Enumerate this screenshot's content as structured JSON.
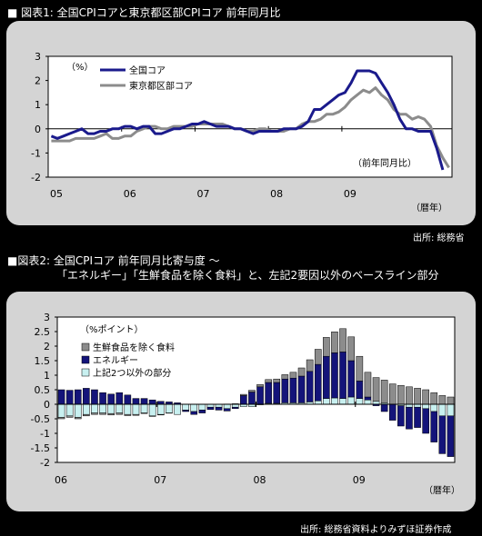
{
  "figures": [
    {
      "title": "■ 図表1: 全国CPIコアと東京都区部CPIコア 前年同月比",
      "source": "出所: 総務省"
    },
    {
      "title_line1": "■図表2: 全国CPIコア 前年同月比寄与度 〜",
      "title_line2": "「エネルギー」「生鮮食品を除く食料」と、左記2要因以外のベースライン部分",
      "source": "出所: 総務省資料よりみずほ証券作成"
    }
  ],
  "chart_data": [
    {
      "type": "line",
      "unit_label": "（%）",
      "annotation": "（前年同月比）",
      "xlabel": "（暦年）",
      "x_start": "2005-01",
      "x_ticks": [
        "05",
        "06",
        "07",
        "08",
        "09"
      ],
      "ylim": [
        -2,
        3
      ],
      "y_ticks": [
        "3",
        "2",
        "1",
        "0",
        "-1",
        "-2"
      ],
      "series": [
        {
          "name": "全国コア",
          "color": "#1a1a8c",
          "values": [
            -0.3,
            -0.4,
            -0.3,
            -0.2,
            -0.1,
            0.0,
            -0.2,
            -0.2,
            -0.1,
            -0.1,
            0.0,
            0.0,
            0.1,
            0.1,
            0.0,
            0.1,
            0.1,
            -0.2,
            -0.2,
            -0.1,
            0.0,
            0.0,
            0.1,
            0.2,
            0.2,
            0.3,
            0.2,
            0.1,
            0.1,
            0.1,
            0.0,
            0.0,
            -0.1,
            -0.2,
            -0.1,
            -0.1,
            -0.1,
            -0.1,
            0.0,
            0.0,
            0.0,
            0.1,
            0.3,
            0.8,
            0.8,
            1.0,
            1.2,
            1.4,
            1.5,
            1.9,
            2.4,
            2.4,
            2.4,
            2.3,
            1.9,
            1.5,
            1.0,
            0.4,
            0.0,
            0.0,
            -0.1,
            -0.1,
            -0.1,
            -0.8,
            -1.7
          ]
        },
        {
          "name": "東京都区部コア",
          "color": "#8c8c8c",
          "values": [
            -0.5,
            -0.5,
            -0.5,
            -0.5,
            -0.4,
            -0.4,
            -0.4,
            -0.4,
            -0.3,
            -0.2,
            -0.4,
            -0.4,
            -0.3,
            -0.3,
            -0.1,
            0.0,
            0.1,
            0.1,
            0.0,
            0.0,
            0.1,
            0.1,
            0.1,
            0.1,
            0.2,
            0.2,
            0.2,
            0.2,
            0.2,
            0.1,
            0.0,
            0.0,
            -0.1,
            -0.1,
            0.0,
            0.0,
            -0.1,
            -0.1,
            -0.1,
            0.0,
            0.0,
            0.2,
            0.3,
            0.3,
            0.4,
            0.6,
            0.6,
            0.7,
            0.9,
            1.2,
            1.4,
            1.6,
            1.5,
            1.7,
            1.4,
            1.2,
            0.8,
            0.6,
            0.6,
            0.4,
            0.5,
            0.4,
            0.1,
            -0.7,
            -1.2,
            -1.6
          ]
        }
      ]
    },
    {
      "type": "bar",
      "stacked": true,
      "unit_label": "（%ポイント）",
      "xlabel": "（暦年）",
      "x_start": "2006-01",
      "x_ticks": [
        "06",
        "07",
        "08",
        "09"
      ],
      "ylim": [
        -2,
        3
      ],
      "y_ticks": [
        "3",
        "2.5",
        "2",
        "1.5",
        "1",
        "0.5",
        "0",
        "-0.5",
        "-1",
        "-1.5",
        "-2"
      ],
      "series": [
        {
          "name": "生鮮食品を除く食料",
          "color": "#8c8c8c"
        },
        {
          "name": "エネルギー",
          "color": "#14147a"
        },
        {
          "name": "上記2つ以外の部分",
          "color": "#c8f0f0"
        }
      ],
      "values": {
        "food": [
          -0.05,
          -0.05,
          -0.05,
          -0.05,
          -0.05,
          -0.05,
          -0.05,
          -0.05,
          -0.04,
          -0.03,
          -0.02,
          -0.02,
          -0.02,
          -0.01,
          0.0,
          0.0,
          0.0,
          0.0,
          0.0,
          0.0,
          0.01,
          0.02,
          0.04,
          0.06,
          0.08,
          0.1,
          0.12,
          0.15,
          0.2,
          0.28,
          0.4,
          0.52,
          0.65,
          0.72,
          0.8,
          0.82,
          0.85,
          0.85,
          0.82,
          0.78,
          0.7,
          0.65,
          0.6,
          0.55,
          0.5,
          0.4,
          0.3,
          0.25
        ],
        "energy": [
          0.5,
          0.48,
          0.5,
          0.55,
          0.5,
          0.4,
          0.35,
          0.4,
          0.32,
          0.2,
          0.2,
          0.15,
          0.1,
          0.08,
          0.05,
          -0.05,
          -0.1,
          -0.1,
          -0.08,
          -0.1,
          -0.08,
          -0.05,
          0.3,
          0.42,
          0.6,
          0.72,
          0.72,
          0.82,
          0.85,
          0.92,
          1.05,
          1.25,
          1.45,
          1.55,
          1.6,
          1.25,
          0.6,
          0.1,
          -0.05,
          -0.25,
          -0.55,
          -0.7,
          -0.75,
          -0.7,
          -0.85,
          -1.05,
          -1.3,
          -1.4
        ],
        "baseline": [
          -0.45,
          -0.4,
          -0.45,
          -0.35,
          -0.3,
          -0.3,
          -0.32,
          -0.3,
          -0.35,
          -0.35,
          -0.3,
          -0.4,
          -0.35,
          -0.3,
          -0.35,
          -0.2,
          -0.25,
          -0.2,
          -0.1,
          -0.1,
          -0.15,
          -0.1,
          -0.08,
          -0.08,
          -0.02,
          0.03,
          0.03,
          0.05,
          0.05,
          0.05,
          0.08,
          0.12,
          0.2,
          0.22,
          0.2,
          0.25,
          0.2,
          0.15,
          0.1,
          0.05,
          0.0,
          -0.05,
          -0.1,
          -0.1,
          -0.15,
          -0.25,
          -0.4,
          -0.4
        ]
      }
    }
  ]
}
